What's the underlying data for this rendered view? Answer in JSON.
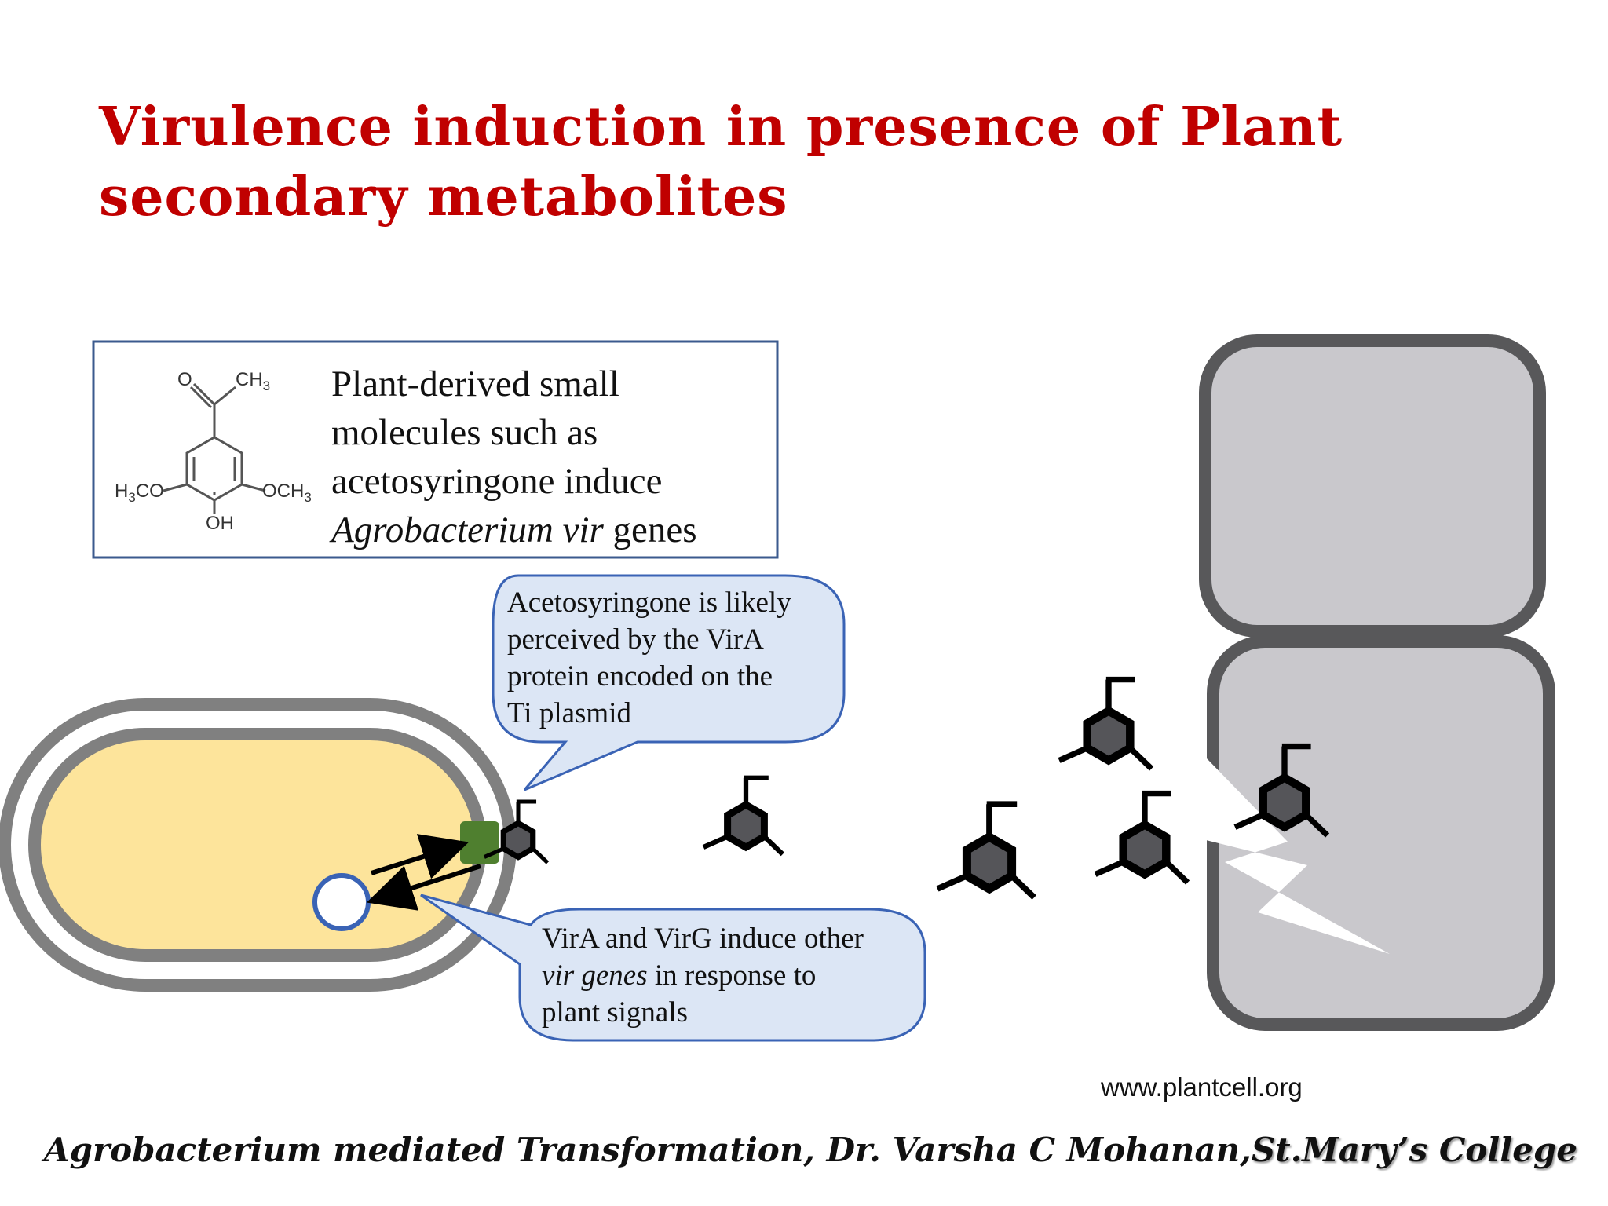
{
  "title": {
    "line1": "Virulence induction in presence of Plant",
    "line2": "secondary metabolites"
  },
  "info_box": {
    "line1": "Plant-derived small",
    "line2": "molecules such as",
    "line3": "acetosyringone induce",
    "line4_italic": "Agrobacterium vir",
    "line4_rest": " genes"
  },
  "molecule_labels": {
    "ketone_o": "O",
    "methyl": "CH",
    "methyl_sub": "3",
    "left_methoxy": "H",
    "left_methoxy_sub": "3",
    "left_methoxy_rest": "CO",
    "right_methoxy": "OCH",
    "right_methoxy_sub": "3",
    "hydroxyl": "OH"
  },
  "callout_top": {
    "line1": "Acetosyringone is likely",
    "line2": "perceived by the VirA",
    "line3": "protein encoded on the",
    "line4": "Ti plasmid"
  },
  "callout_bottom": {
    "line1": "VirA and VirG induce other",
    "line2_italic": "vir genes",
    "line2_rest": " in response to",
    "line3": "plant signals"
  },
  "credit": "www.plantcell.org",
  "footer": {
    "main": "Agrobacterium mediated Transformation, Dr. Varsha C Mohanan,",
    "college": "St.Mary’s College"
  },
  "colors": {
    "title": "#c00000",
    "cytoplasm": "#fde49b",
    "membrane": "#808080",
    "plasmid": "#3a63b5",
    "vira_receptor": "#4f7f2f",
    "callout_fill": "#dce6f5",
    "callout_stroke": "#3a63b5",
    "plant_cell_fill": "#c9c8cc",
    "plant_cell_wall": "#58585a"
  }
}
